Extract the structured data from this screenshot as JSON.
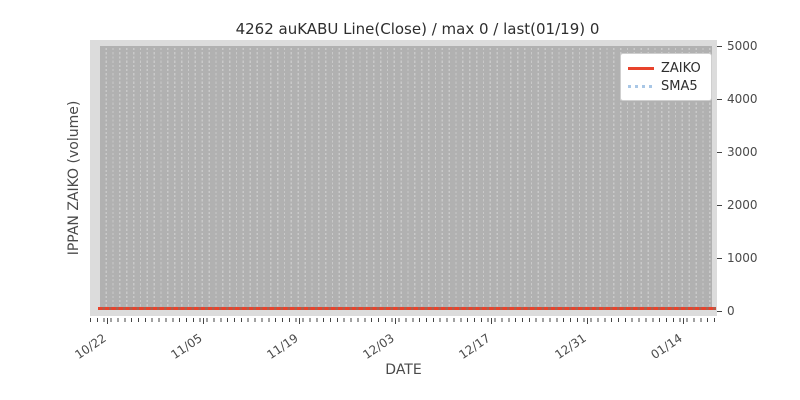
{
  "title": "4262 auKABU Line(Close) / max 0 / last(01/19) 0",
  "x_axis": {
    "label": "DATE",
    "major_ticks": [
      "10/22",
      "11/05",
      "11/19",
      "12/03",
      "12/17",
      "12/31",
      "01/14"
    ]
  },
  "y_axis": {
    "label": "IPPAN ZAIKO (volume)",
    "ticks": [
      "0",
      "1000",
      "2000",
      "3000",
      "4000",
      "5000"
    ]
  },
  "legend": {
    "entries": [
      {
        "label": "ZAIKO",
        "style": "solid",
        "color": "#e8432c"
      },
      {
        "label": "SMA5",
        "style": "dotted",
        "color": "#a9c7e6"
      }
    ]
  },
  "colors": {
    "zaiko_red": "#e8432c",
    "sma5_blue": "#a9c7e6",
    "plot_background": "#dcdcdc",
    "band_gray": "#b1b1b1"
  },
  "chart_data": {
    "type": "line",
    "title": "4262 auKABU Line(Close) / max 0 / last(01/19) 0",
    "xlabel": "DATE",
    "ylabel": "IPPAN ZAIKO (volume)",
    "x_range": [
      "10/22",
      "01/19"
    ],
    "x_major_ticks": [
      "10/22",
      "11/05",
      "11/19",
      "12/03",
      "12/17",
      "12/31",
      "01/14"
    ],
    "ylim": [
      0,
      5000
    ],
    "y_ticks": [
      0,
      1000,
      2000,
      3000,
      4000,
      5000
    ],
    "y_axis_side": "right",
    "grid": "dashed vertical gray gridlines, gray plot band",
    "legend_position": "upper right",
    "series": [
      {
        "name": "ZAIKO",
        "style": "solid",
        "color": "#e8432c",
        "x": [
          "10/22",
          "11/05",
          "11/19",
          "12/03",
          "12/17",
          "12/31",
          "01/14",
          "01/19"
        ],
        "values": [
          0,
          0,
          0,
          0,
          0,
          0,
          0,
          0
        ]
      },
      {
        "name": "SMA5",
        "style": "dotted",
        "color": "#a9c7e6",
        "x": [
          "10/22",
          "11/05",
          "11/19",
          "12/03",
          "12/17",
          "12/31",
          "01/14",
          "01/19"
        ],
        "values": [
          0,
          0,
          0,
          0,
          0,
          0,
          0,
          0
        ]
      }
    ],
    "max": 0,
    "last_date": "01/19",
    "last_value": 0
  }
}
